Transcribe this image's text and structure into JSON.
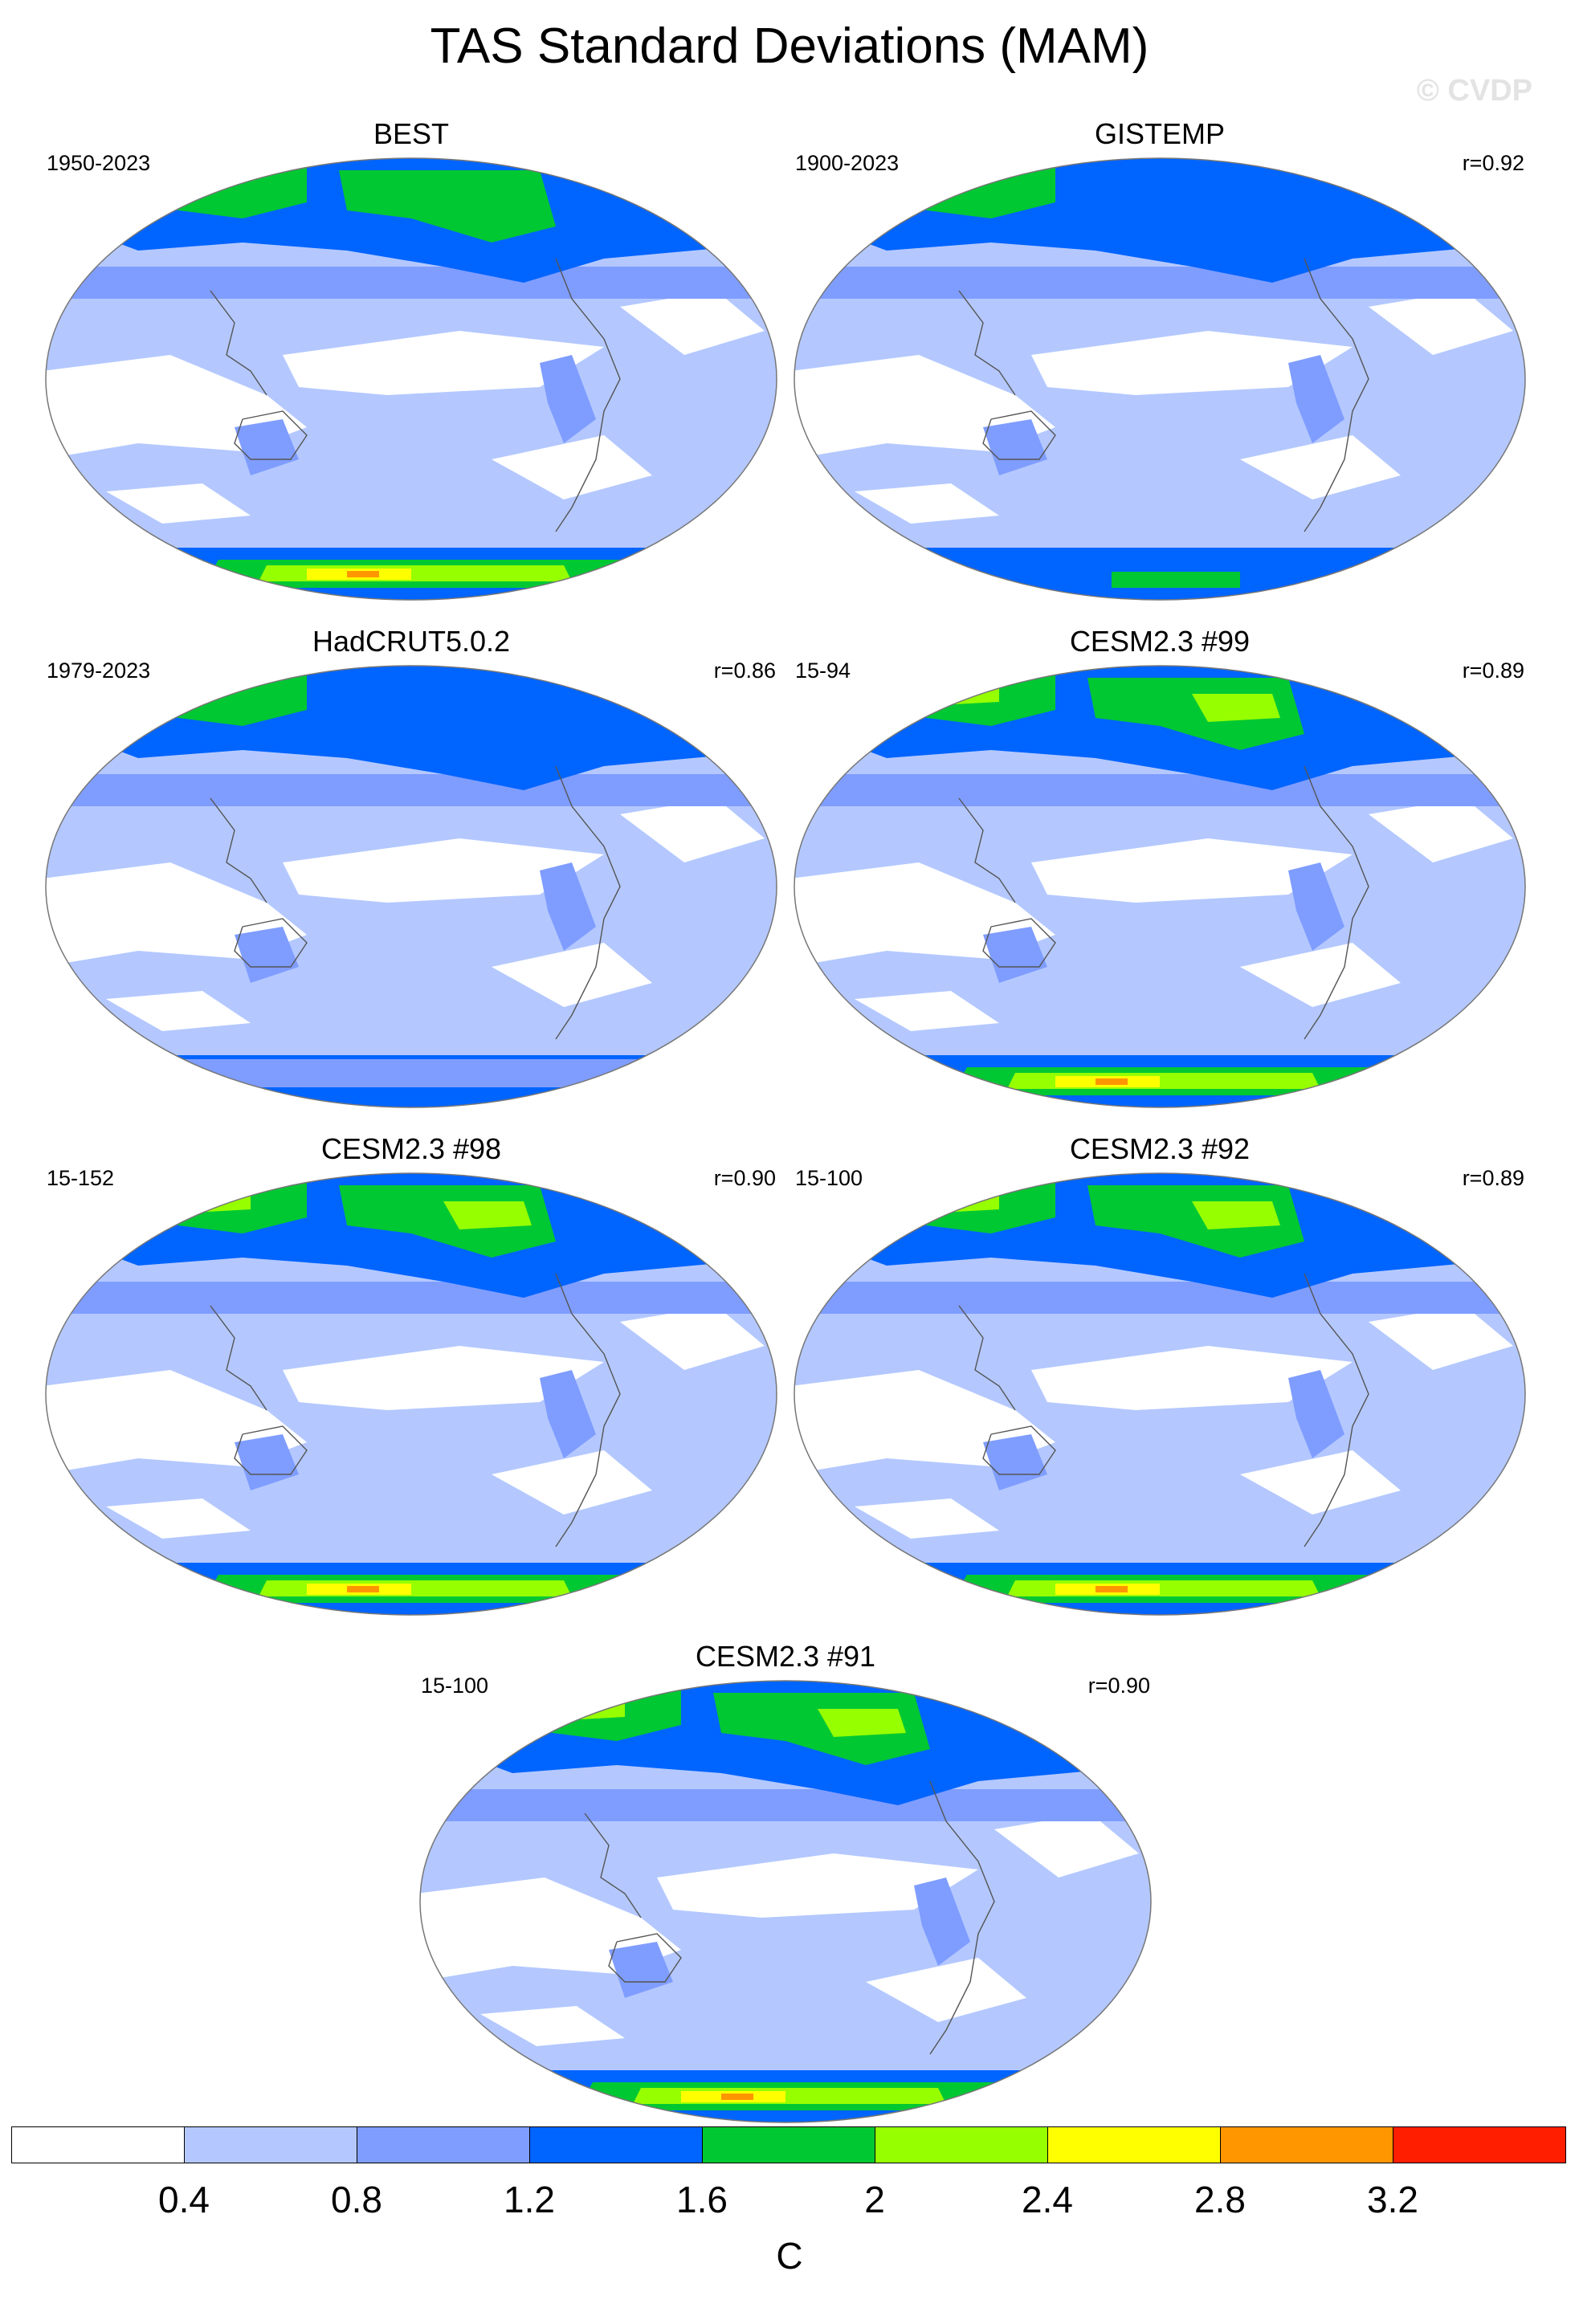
{
  "title": "TAS Standard Deviations (MAM)",
  "watermark": "© CVDP",
  "panels": [
    {
      "name": "BEST",
      "period": "1950-2023",
      "corr": ""
    },
    {
      "name": "GISTEMP",
      "period": "1900-2023",
      "corr": "r=0.92"
    },
    {
      "name": "HadCRUT5.0.2",
      "period": "1979-2023",
      "corr": "r=0.86"
    },
    {
      "name": "CESM2.3 #99",
      "period": "15-94",
      "corr": "r=0.89"
    },
    {
      "name": "CESM2.3 #98",
      "period": "15-152",
      "corr": "r=0.90"
    },
    {
      "name": "CESM2.3 #92",
      "period": "15-100",
      "corr": "r=0.89"
    },
    {
      "name": "CESM2.3 #91",
      "period": "15-100",
      "corr": "r=0.90"
    }
  ],
  "colorbar": {
    "units": "C",
    "labels": [
      "0.4",
      "0.8",
      "1.2",
      "1.6",
      "2",
      "2.4",
      "2.8",
      "3.2"
    ],
    "colors": [
      "#ffffff",
      "#b4c8ff",
      "#7f9dff",
      "#0064ff",
      "#00c832",
      "#96ff00",
      "#ffff00",
      "#ff9600",
      "#ff1e00"
    ]
  }
}
